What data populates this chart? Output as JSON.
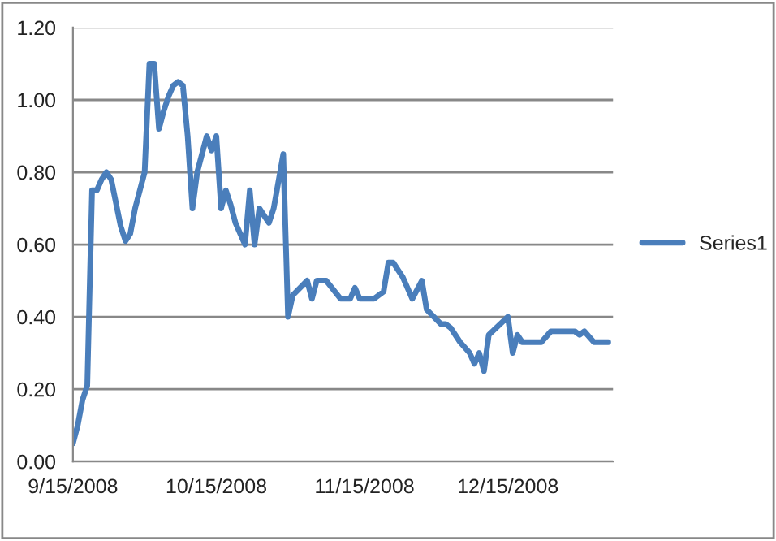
{
  "chart_data": {
    "type": "line",
    "xlim": [
      "2008-09-15",
      "2009-01-06"
    ],
    "ylim": [
      0,
      1.2
    ],
    "yticks": [
      {
        "value": 0,
        "label": "0.00"
      },
      {
        "value": 0.2,
        "label": "0.20"
      },
      {
        "value": 0.4,
        "label": "0.40"
      },
      {
        "value": 0.6,
        "label": "0.60"
      },
      {
        "value": 0.8,
        "label": "0.80"
      },
      {
        "value": 1.0,
        "label": "1.00"
      },
      {
        "value": 1.2,
        "label": "1.20"
      }
    ],
    "xticks": [
      {
        "value": "2008-09-15",
        "label": "9/15/2008"
      },
      {
        "value": "2008-10-15",
        "label": "10/15/2008"
      },
      {
        "value": "2008-11-15",
        "label": "11/15/2008"
      },
      {
        "value": "2008-12-15",
        "label": "12/15/2008"
      }
    ],
    "grid": "y",
    "legend": "right",
    "marker": "none",
    "line_style": "solid",
    "x": [
      "2008-09-15",
      "2008-09-16",
      "2008-09-17",
      "2008-09-18",
      "2008-09-19",
      "2008-09-20",
      "2008-09-21",
      "2008-09-22",
      "2008-09-23",
      "2008-09-25",
      "2008-09-26",
      "2008-09-27",
      "2008-09-28",
      "2008-09-30",
      "2008-10-01",
      "2008-10-02",
      "2008-10-03",
      "2008-10-04",
      "2008-10-05",
      "2008-10-06",
      "2008-10-07",
      "2008-10-08",
      "2008-10-09",
      "2008-10-10",
      "2008-10-11",
      "2008-10-12",
      "2008-10-13",
      "2008-10-14",
      "2008-10-15",
      "2008-10-16",
      "2008-10-17",
      "2008-10-18",
      "2008-10-19",
      "2008-10-21",
      "2008-10-22",
      "2008-10-23",
      "2008-10-24",
      "2008-10-26",
      "2008-10-27",
      "2008-10-29",
      "2008-10-30",
      "2008-10-31",
      "2008-11-03",
      "2008-11-04",
      "2008-11-05",
      "2008-11-07",
      "2008-11-10",
      "2008-11-12",
      "2008-11-13",
      "2008-11-14",
      "2008-11-17",
      "2008-11-19",
      "2008-11-20",
      "2008-11-21",
      "2008-11-23",
      "2008-11-25",
      "2008-11-27",
      "2008-11-28",
      "2008-12-01",
      "2008-12-02",
      "2008-12-03",
      "2008-12-05",
      "2008-12-07",
      "2008-12-08",
      "2008-12-09",
      "2008-12-10",
      "2008-12-11",
      "2008-12-15",
      "2008-12-16",
      "2008-12-17",
      "2008-12-18",
      "2008-12-22",
      "2008-12-24",
      "2008-12-29",
      "2008-12-30",
      "2008-12-31",
      "2009-01-02",
      "2009-01-05"
    ],
    "series": [
      {
        "name": "Series1",
        "color": "#4a7ebb",
        "values": [
          0.05,
          0.1,
          0.17,
          0.21,
          0.75,
          0.75,
          0.78,
          0.8,
          0.78,
          0.65,
          0.61,
          0.63,
          0.7,
          0.8,
          1.1,
          1.1,
          0.92,
          0.97,
          1.01,
          1.04,
          1.05,
          1.04,
          0.9,
          0.7,
          0.8,
          0.85,
          0.9,
          0.86,
          0.9,
          0.7,
          0.75,
          0.71,
          0.66,
          0.6,
          0.75,
          0.6,
          0.7,
          0.66,
          0.7,
          0.85,
          0.4,
          0.46,
          0.5,
          0.45,
          0.5,
          0.5,
          0.45,
          0.45,
          0.48,
          0.45,
          0.45,
          0.47,
          0.55,
          0.55,
          0.51,
          0.45,
          0.5,
          0.42,
          0.38,
          0.38,
          0.37,
          0.33,
          0.3,
          0.27,
          0.3,
          0.25,
          0.35,
          0.4,
          0.3,
          0.35,
          0.33,
          0.33,
          0.36,
          0.36,
          0.35,
          0.36,
          0.33,
          0.33
        ]
      }
    ]
  }
}
